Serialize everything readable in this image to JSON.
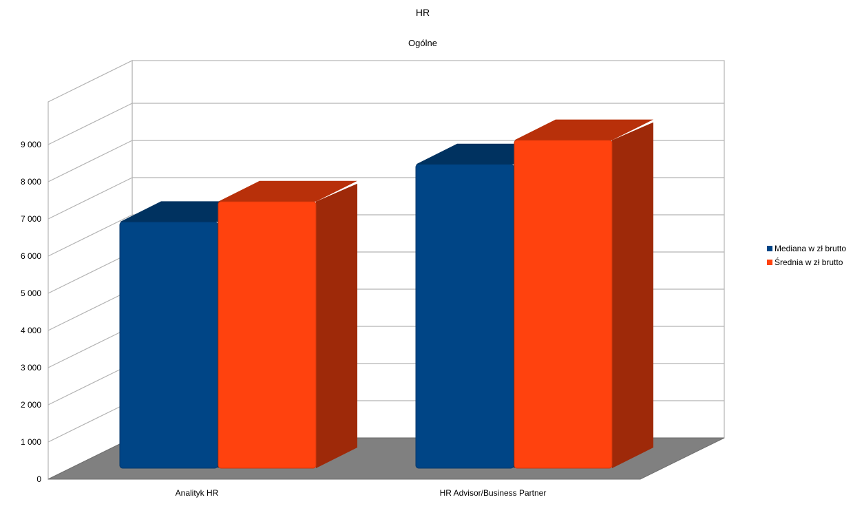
{
  "chart_data": {
    "type": "bar",
    "title": "HR",
    "subtitle": "Ogólne",
    "xlabel": "",
    "ylabel": "",
    "categories": [
      "Analityk HR",
      "HR Advisor/Business Partner"
    ],
    "series": [
      {
        "name": "Mediana w zł brutto",
        "color": "#004586",
        "values": [
          6400,
          7950
        ]
      },
      {
        "name": "Średnia w zł brutto",
        "color": "#ff420e",
        "values": [
          6950,
          8600
        ]
      }
    ],
    "ylim": [
      0,
      9000
    ],
    "yticks": [
      "0",
      "1 000",
      "2 000",
      "3 000",
      "4 000",
      "5 000",
      "6 000",
      "7 000",
      "8 000",
      "9 000"
    ],
    "grid": true,
    "three_d": true,
    "legend_position": "right"
  }
}
